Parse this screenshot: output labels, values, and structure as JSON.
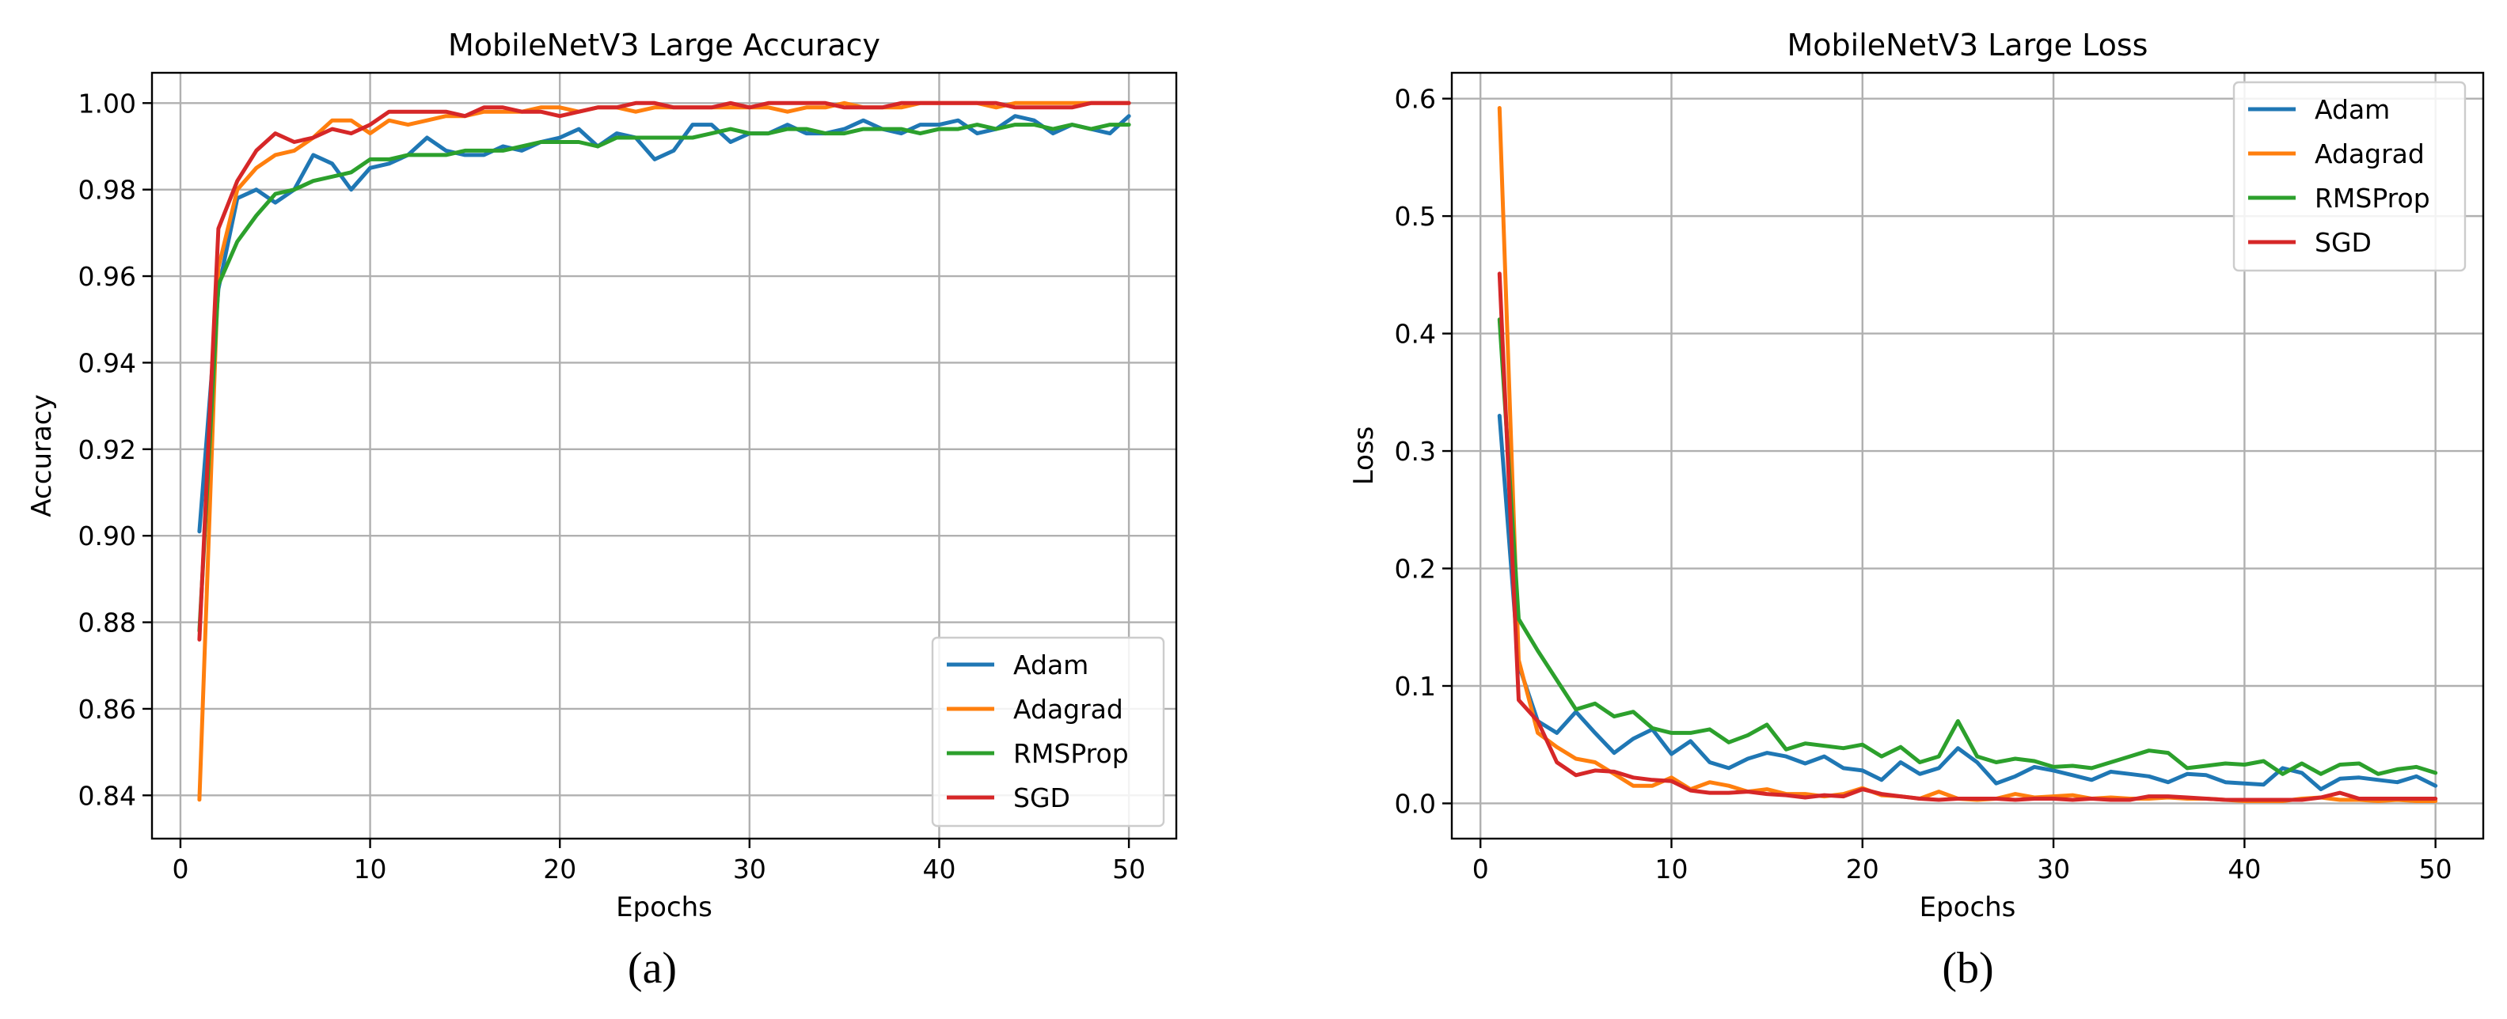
{
  "figure": {
    "captions": [
      "(a)",
      "(b)"
    ],
    "colors": {
      "Adam": "#1f77b4",
      "Adagrad": "#ff7f0e",
      "RMSProp": "#2ca02c",
      "SGD": "#d62728"
    }
  },
  "chart_data": [
    {
      "type": "line",
      "title": "MobileNetV3 Large Accuracy",
      "xlabel": "Epochs",
      "ylabel": "Accuracy",
      "xlim": [
        -1.5,
        52.5
      ],
      "ylim": [
        0.83,
        1.007
      ],
      "xticks": [
        0,
        10,
        20,
        30,
        40,
        50
      ],
      "yticks": [
        0.84,
        0.86,
        0.88,
        0.9,
        0.92,
        0.94,
        0.96,
        0.98,
        1.0
      ],
      "ytick_labels": [
        "0.84",
        "0.86",
        "0.88",
        "0.90",
        "0.92",
        "0.94",
        "0.96",
        "0.98",
        "1.00"
      ],
      "grid": true,
      "legend_position": "lower-right",
      "x": [
        1,
        2,
        3,
        4,
        5,
        6,
        7,
        8,
        9,
        10,
        11,
        12,
        13,
        14,
        15,
        16,
        17,
        18,
        19,
        20,
        21,
        22,
        23,
        24,
        25,
        26,
        27,
        28,
        29,
        30,
        31,
        32,
        33,
        34,
        35,
        36,
        37,
        38,
        39,
        40,
        41,
        42,
        43,
        44,
        45,
        46,
        47,
        48,
        49,
        50
      ],
      "series": [
        {
          "name": "Adam",
          "values": [
            0.901,
            0.957,
            0.978,
            0.98,
            0.977,
            0.98,
            0.988,
            0.986,
            0.98,
            0.985,
            0.986,
            0.988,
            0.992,
            0.989,
            0.988,
            0.988,
            0.99,
            0.989,
            0.991,
            0.992,
            0.994,
            0.99,
            0.993,
            0.992,
            0.987,
            0.989,
            0.995,
            0.995,
            0.991,
            0.993,
            0.993,
            0.995,
            0.993,
            0.993,
            0.994,
            0.996,
            0.994,
            0.993,
            0.995,
            0.995,
            0.996,
            0.993,
            0.994,
            0.997,
            0.996,
            0.993,
            0.995,
            0.994,
            0.993,
            0.997
          ]
        },
        {
          "name": "Adagrad",
          "values": [
            0.839,
            0.962,
            0.98,
            0.985,
            0.988,
            0.989,
            0.992,
            0.996,
            0.996,
            0.993,
            0.996,
            0.995,
            0.996,
            0.997,
            0.997,
            0.998,
            0.998,
            0.998,
            0.999,
            0.999,
            0.998,
            0.999,
            0.999,
            0.998,
            0.999,
            0.999,
            0.999,
            0.999,
            0.999,
            0.999,
            0.999,
            0.998,
            0.999,
            0.999,
            1.0,
            0.999,
            0.999,
            0.999,
            1.0,
            1.0,
            1.0,
            1.0,
            0.999,
            1.0,
            1.0,
            1.0,
            1.0,
            1.0,
            1.0,
            1.0
          ]
        },
        {
          "name": "RMSProp",
          "values": [
            0.878,
            0.958,
            0.968,
            0.974,
            0.979,
            0.98,
            0.982,
            0.983,
            0.984,
            0.987,
            0.987,
            0.988,
            0.988,
            0.988,
            0.989,
            0.989,
            0.989,
            0.99,
            0.991,
            0.991,
            0.991,
            0.99,
            0.992,
            0.992,
            0.992,
            0.992,
            0.992,
            0.993,
            0.994,
            0.993,
            0.993,
            0.994,
            0.994,
            0.993,
            0.993,
            0.994,
            0.994,
            0.994,
            0.993,
            0.994,
            0.994,
            0.995,
            0.994,
            0.995,
            0.995,
            0.994,
            0.995,
            0.994,
            0.995,
            0.995
          ]
        },
        {
          "name": "SGD",
          "values": [
            0.876,
            0.971,
            0.982,
            0.989,
            0.993,
            0.991,
            0.992,
            0.994,
            0.993,
            0.995,
            0.998,
            0.998,
            0.998,
            0.998,
            0.997,
            0.999,
            0.999,
            0.998,
            0.998,
            0.997,
            0.998,
            0.999,
            0.999,
            1.0,
            1.0,
            0.999,
            0.999,
            0.999,
            1.0,
            0.999,
            1.0,
            1.0,
            1.0,
            1.0,
            0.999,
            0.999,
            0.999,
            1.0,
            1.0,
            1.0,
            1.0,
            1.0,
            1.0,
            0.999,
            0.999,
            0.999,
            0.999,
            1.0,
            1.0,
            1.0
          ]
        }
      ]
    },
    {
      "type": "line",
      "title": "MobileNetV3 Large Loss",
      "xlabel": "Epochs",
      "ylabel": "Loss",
      "xlim": [
        -1.5,
        52.5
      ],
      "ylim": [
        -0.03,
        0.622
      ],
      "xticks": [
        0,
        10,
        20,
        30,
        40,
        50
      ],
      "yticks": [
        0.0,
        0.1,
        0.2,
        0.3,
        0.4,
        0.5,
        0.6
      ],
      "ytick_labels": [
        "0.0",
        "0.1",
        "0.2",
        "0.3",
        "0.4",
        "0.5",
        "0.6"
      ],
      "grid": true,
      "legend_position": "upper-right",
      "x": [
        1,
        2,
        3,
        4,
        5,
        6,
        7,
        8,
        9,
        10,
        11,
        12,
        13,
        14,
        15,
        16,
        17,
        18,
        19,
        20,
        21,
        22,
        23,
        24,
        25,
        26,
        27,
        28,
        29,
        30,
        31,
        32,
        33,
        34,
        35,
        36,
        37,
        38,
        39,
        40,
        41,
        42,
        43,
        44,
        45,
        46,
        47,
        48,
        49,
        50
      ],
      "series": [
        {
          "name": "Adam",
          "values": [
            0.33,
            0.118,
            0.07,
            0.06,
            0.078,
            0.06,
            0.043,
            0.055,
            0.063,
            0.042,
            0.053,
            0.035,
            0.03,
            0.038,
            0.043,
            0.04,
            0.034,
            0.04,
            0.03,
            0.028,
            0.02,
            0.035,
            0.025,
            0.03,
            0.047,
            0.035,
            0.017,
            0.023,
            0.031,
            0.028,
            0.024,
            0.02,
            0.027,
            0.025,
            0.023,
            0.018,
            0.025,
            0.024,
            0.018,
            0.017,
            0.016,
            0.03,
            0.026,
            0.012,
            0.021,
            0.022,
            0.02,
            0.018,
            0.023,
            0.015
          ]
        },
        {
          "name": "Adagrad",
          "values": [
            0.592,
            0.122,
            0.06,
            0.048,
            0.038,
            0.035,
            0.025,
            0.015,
            0.015,
            0.022,
            0.012,
            0.018,
            0.015,
            0.01,
            0.012,
            0.008,
            0.008,
            0.006,
            0.008,
            0.013,
            0.007,
            0.006,
            0.004,
            0.01,
            0.004,
            0.003,
            0.004,
            0.008,
            0.005,
            0.006,
            0.007,
            0.004,
            0.005,
            0.004,
            0.004,
            0.005,
            0.004,
            0.004,
            0.003,
            0.002,
            0.002,
            0.002,
            0.004,
            0.005,
            0.003,
            0.003,
            0.002,
            0.003,
            0.002,
            0.002
          ]
        },
        {
          "name": "RMSProp",
          "values": [
            0.412,
            0.157,
            0.13,
            0.105,
            0.08,
            0.085,
            0.074,
            0.078,
            0.064,
            0.06,
            0.06,
            0.063,
            0.052,
            0.058,
            0.067,
            0.046,
            0.051,
            0.049,
            0.047,
            0.05,
            0.04,
            0.048,
            0.035,
            0.04,
            0.07,
            0.04,
            0.035,
            0.038,
            0.036,
            0.031,
            0.032,
            0.03,
            0.035,
            0.04,
            0.045,
            0.043,
            0.03,
            0.032,
            0.034,
            0.033,
            0.036,
            0.025,
            0.034,
            0.025,
            0.033,
            0.034,
            0.025,
            0.029,
            0.031,
            0.026
          ]
        },
        {
          "name": "SGD",
          "values": [
            0.451,
            0.088,
            0.07,
            0.035,
            0.024,
            0.028,
            0.027,
            0.022,
            0.02,
            0.019,
            0.011,
            0.009,
            0.009,
            0.01,
            0.008,
            0.007,
            0.005,
            0.007,
            0.006,
            0.012,
            0.008,
            0.006,
            0.004,
            0.003,
            0.004,
            0.004,
            0.004,
            0.003,
            0.004,
            0.004,
            0.003,
            0.004,
            0.003,
            0.003,
            0.006,
            0.006,
            0.005,
            0.004,
            0.003,
            0.003,
            0.003,
            0.003,
            0.003,
            0.005,
            0.009,
            0.004,
            0.004,
            0.004,
            0.004,
            0.004
          ]
        }
      ]
    }
  ]
}
